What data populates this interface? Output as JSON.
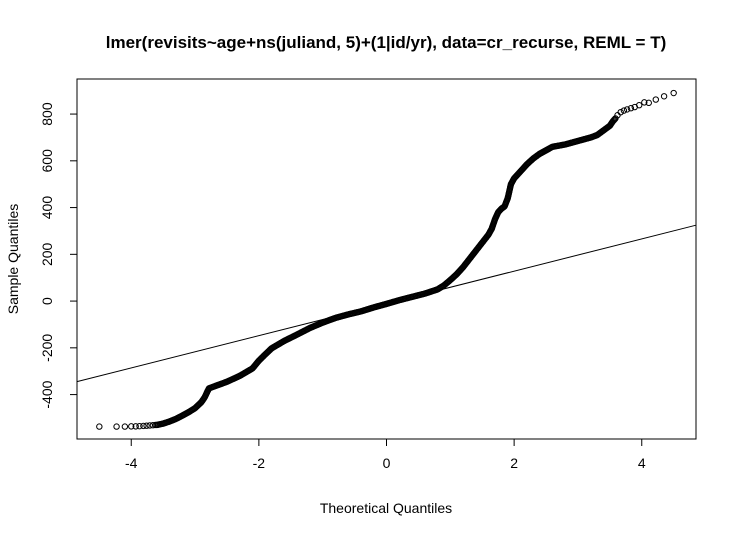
{
  "chart_data": {
    "type": "scatter",
    "subtype": "normal-qq-plot",
    "title": "lmer(revisits~age+ns(juliand, 5)+(1|id/yr), data=cr_recurse, REML = T)",
    "xlabel": "Theoretical Quantiles",
    "ylabel": "Sample Quantiles",
    "xlim": [
      -4.85,
      4.85
    ],
    "ylim": [
      -590,
      950
    ],
    "xticks": [
      -4,
      -2,
      0,
      2,
      4
    ],
    "yticks": [
      -400,
      -200,
      0,
      200,
      400,
      600,
      800
    ],
    "grid": false,
    "marker": "open-circle",
    "reference_line": {
      "slope": 69,
      "intercept": -10
    },
    "outlier_points": [
      {
        "x": -4.5,
        "y": -537
      },
      {
        "x": -4.23,
        "y": -537
      },
      {
        "x": -4.1,
        "y": -537
      },
      {
        "x": -4.0,
        "y": -536
      },
      {
        "x": -3.93,
        "y": -536
      },
      {
        "x": -3.87,
        "y": -535
      },
      {
        "x": -3.81,
        "y": -534
      },
      {
        "x": -3.76,
        "y": -533
      },
      {
        "x": -3.71,
        "y": -532
      },
      {
        "x": -3.66,
        "y": -531
      },
      {
        "x": -3.62,
        "y": -530
      },
      {
        "x": 3.62,
        "y": 795
      },
      {
        "x": 3.67,
        "y": 808
      },
      {
        "x": 3.72,
        "y": 815
      },
      {
        "x": 3.77,
        "y": 820
      },
      {
        "x": 3.83,
        "y": 825
      },
      {
        "x": 3.89,
        "y": 830
      },
      {
        "x": 3.96,
        "y": 838
      },
      {
        "x": 4.04,
        "y": 850
      },
      {
        "x": 4.11,
        "y": 848
      },
      {
        "x": 4.22,
        "y": 862
      },
      {
        "x": 4.35,
        "y": 876
      },
      {
        "x": 4.5,
        "y": 890
      }
    ],
    "curve": {
      "x": [
        -3.6,
        -3.5,
        -3.4,
        -3.3,
        -3.2,
        -3.1,
        -3.0,
        -2.9,
        -2.85,
        -2.82,
        -2.8,
        -2.78,
        -2.7,
        -2.5,
        -2.3,
        -2.1,
        -2.0,
        -1.9,
        -1.8,
        -1.6,
        -1.4,
        -1.2,
        -1.0,
        -0.8,
        -0.6,
        -0.4,
        -0.2,
        0.0,
        0.2,
        0.4,
        0.6,
        0.8,
        0.9,
        1.0,
        1.1,
        1.2,
        1.3,
        1.4,
        1.5,
        1.6,
        1.65,
        1.7,
        1.75,
        1.8,
        1.85,
        1.9,
        1.95,
        2.0,
        2.05,
        2.1,
        2.2,
        2.3,
        2.4,
        2.5,
        2.6,
        2.8,
        3.0,
        3.2,
        3.3,
        3.4,
        3.5,
        3.55,
        3.6
      ],
      "y": [
        -530,
        -524,
        -515,
        -504,
        -490,
        -475,
        -458,
        -432,
        -412,
        -395,
        -383,
        -373,
        -365,
        -345,
        -320,
        -288,
        -255,
        -228,
        -202,
        -170,
        -143,
        -115,
        -92,
        -72,
        -57,
        -44,
        -27,
        -12,
        4,
        18,
        32,
        50,
        67,
        90,
        115,
        145,
        180,
        215,
        250,
        285,
        310,
        350,
        380,
        395,
        405,
        440,
        500,
        525,
        540,
        555,
        585,
        610,
        630,
        645,
        660,
        670,
        685,
        700,
        710,
        730,
        750,
        770,
        785
      ]
    }
  }
}
